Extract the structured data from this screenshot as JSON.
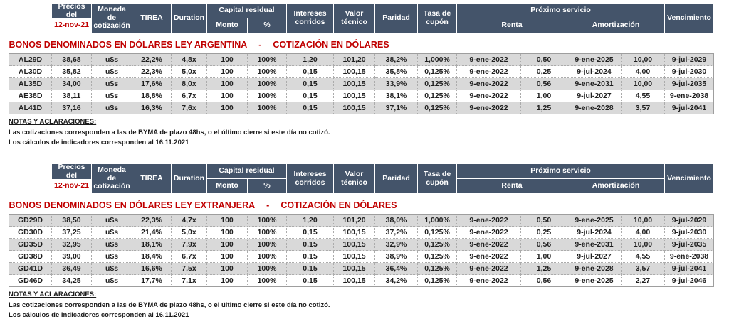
{
  "report": {
    "columns": {
      "precios": "Precios del",
      "fecha": "12-nov-21",
      "moneda": "Moneda de cotización",
      "tirea": "TIREA",
      "duration": "Duration",
      "capital_residual": "Capital residual",
      "monto": "Monto",
      "pct": "%",
      "intereses": "Intereses corridos",
      "valor_tecnico": "Valor técnico",
      "paridad": "Paridad",
      "tasa_cupon": "Tasa de cupón",
      "proximo_servicio": "Próximo servicio",
      "renta": "Renta",
      "amortizacion": "Amortización",
      "vencimiento": "Vencimiento"
    },
    "colors": {
      "header_bg": "#44546A",
      "accent_red": "#C00000",
      "stripe_gray": "#D9D9D9"
    },
    "tables": [
      {
        "title": "BONOS DENOMINADOS EN DÓLARES LEY ARGENTINA",
        "separator": "-",
        "subtitle": "COTIZACIÓN EN DÓLARES",
        "rows": [
          [
            "AL29D",
            "38,68",
            "u$s",
            "22,2%",
            "4,8x",
            "100",
            "100%",
            "1,20",
            "101,20",
            "38,2%",
            "1,000%",
            "9-ene-2022",
            "0,50",
            "9-ene-2025",
            "10,00",
            "9-jul-2029"
          ],
          [
            "AL30D",
            "35,82",
            "u$s",
            "22,3%",
            "5,0x",
            "100",
            "100%",
            "0,15",
            "100,15",
            "35,8%",
            "0,125%",
            "9-ene-2022",
            "0,25",
            "9-jul-2024",
            "4,00",
            "9-jul-2030"
          ],
          [
            "AL35D",
            "34,00",
            "u$s",
            "17,6%",
            "8,0x",
            "100",
            "100%",
            "0,15",
            "100,15",
            "33,9%",
            "0,125%",
            "9-ene-2022",
            "0,56",
            "9-ene-2031",
            "10,00",
            "9-jul-2035"
          ],
          [
            "AE38D",
            "38,11",
            "u$s",
            "18,8%",
            "6,7x",
            "100",
            "100%",
            "0,15",
            "100,15",
            "38,1%",
            "0,125%",
            "9-ene-2022",
            "1,00",
            "9-jul-2027",
            "4,55",
            "9-ene-2038"
          ],
          [
            "AL41D",
            "37,16",
            "u$s",
            "16,3%",
            "7,6x",
            "100",
            "100%",
            "0,15",
            "100,15",
            "37,1%",
            "0,125%",
            "9-ene-2022",
            "1,25",
            "9-ene-2028",
            "3,57",
            "9-jul-2041"
          ]
        ],
        "notes_title": "NOTAS Y ACLARACIONES:",
        "notes": [
          "Las cotizaciones corresponden a las de BYMA de plazo 48hs, o el último cierre si este día no cotizó.",
          "Los cálculos de indicadores corresponden al 16.11.2021"
        ]
      },
      {
        "title": "BONOS DENOMINADOS EN DÓLARES LEY EXTRANJERA",
        "separator": "-",
        "subtitle": "COTIZACIÓN EN DÓLARES",
        "rows": [
          [
            "GD29D",
            "38,50",
            "u$s",
            "22,3%",
            "4,7x",
            "100",
            "100%",
            "1,20",
            "101,20",
            "38,0%",
            "1,000%",
            "9-ene-2022",
            "0,50",
            "9-ene-2025",
            "10,00",
            "9-jul-2029"
          ],
          [
            "GD30D",
            "37,25",
            "u$s",
            "21,4%",
            "5,0x",
            "100",
            "100%",
            "0,15",
            "100,15",
            "37,2%",
            "0,125%",
            "9-ene-2022",
            "0,25",
            "9-jul-2024",
            "4,00",
            "9-jul-2030"
          ],
          [
            "GD35D",
            "32,95",
            "u$s",
            "18,1%",
            "7,9x",
            "100",
            "100%",
            "0,15",
            "100,15",
            "32,9%",
            "0,125%",
            "9-ene-2022",
            "0,56",
            "9-ene-2031",
            "10,00",
            "9-jul-2035"
          ],
          [
            "GD38D",
            "39,00",
            "u$s",
            "18,4%",
            "6,7x",
            "100",
            "100%",
            "0,15",
            "100,15",
            "38,9%",
            "0,125%",
            "9-ene-2022",
            "1,00",
            "9-jul-2027",
            "4,55",
            "9-ene-2038"
          ],
          [
            "GD41D",
            "36,49",
            "u$s",
            "16,6%",
            "7,5x",
            "100",
            "100%",
            "0,15",
            "100,15",
            "36,4%",
            "0,125%",
            "9-ene-2022",
            "1,25",
            "9-ene-2028",
            "3,57",
            "9-jul-2041"
          ],
          [
            "GD46D",
            "34,25",
            "u$s",
            "17,7%",
            "7,1x",
            "100",
            "100%",
            "0,15",
            "100,15",
            "34,2%",
            "0,125%",
            "9-ene-2022",
            "0,56",
            "9-ene-2025",
            "2,27",
            "9-jul-2046"
          ]
        ],
        "notes_title": "NOTAS Y ACLARACIONES:",
        "notes": [
          "Las cotizaciones corresponden a las de BYMA de plazo 48hs, o el último cierre si este día no cotizó.",
          "Los cálculos de indicadores corresponden al 16.11.2021"
        ]
      }
    ]
  }
}
